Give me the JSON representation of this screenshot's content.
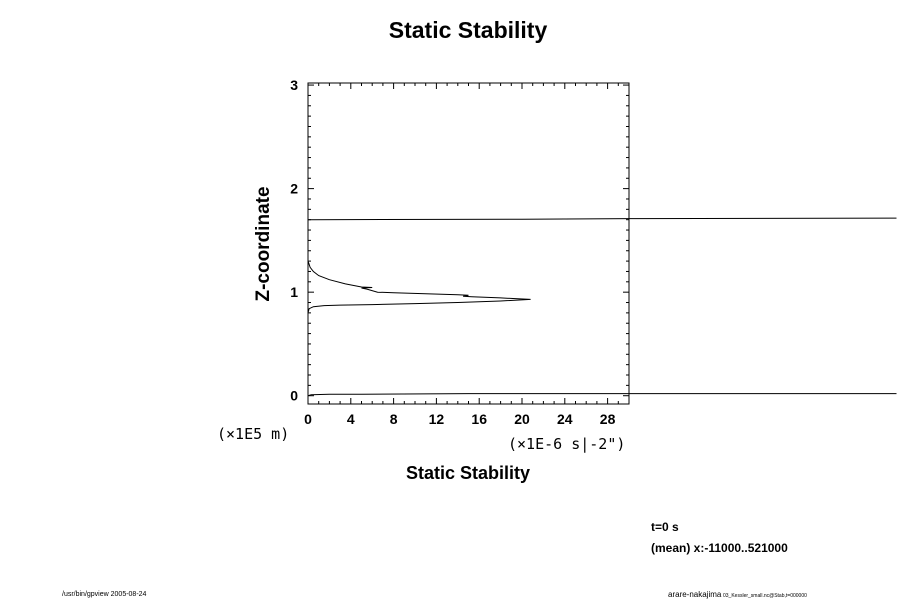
{
  "colors": {
    "background": "#ffffff",
    "ink": "#000000"
  },
  "chart_data": {
    "type": "line",
    "title": "Static Stability",
    "xlabel": "Static Stability",
    "ylabel": "Z-coordinate",
    "x_scale_label": "(×1E-6 s|-2\")",
    "y_scale_label": "(×1E5 m)",
    "xlim": [
      0,
      30
    ],
    "ylim": [
      -0.08,
      3.02
    ],
    "x_ticks": [
      0,
      4,
      8,
      12,
      16,
      20,
      24,
      28
    ],
    "y_ticks": [
      0,
      1,
      2,
      3
    ],
    "grid": false,
    "series": [
      {
        "points": [
          [
            0.0,
            0.0
          ],
          [
            0.3,
            0.01
          ],
          [
            2.0,
            0.015
          ],
          [
            5.0,
            0.015
          ],
          [
            15.0,
            0.02
          ],
          [
            30.0,
            0.02
          ],
          [
            55.0,
            0.02
          ],
          [
            null,
            null
          ],
          [
            0.0,
            0.8
          ],
          [
            0.1,
            0.84
          ],
          [
            0.5,
            0.86
          ],
          [
            1.5,
            0.87
          ],
          [
            3.0,
            0.875
          ],
          [
            6.0,
            0.88
          ],
          [
            10.0,
            0.89
          ],
          [
            14.0,
            0.9
          ],
          [
            18.0,
            0.915
          ],
          [
            20.8,
            0.93
          ],
          [
            18.0,
            0.945
          ],
          [
            15.3,
            0.955
          ],
          [
            14.5,
            0.96
          ],
          [
            15.0,
            0.97
          ],
          [
            14.0,
            0.975
          ],
          [
            11.0,
            0.985
          ],
          [
            8.0,
            0.995
          ],
          [
            6.5,
            1.0
          ],
          [
            5.5,
            1.03
          ],
          [
            5.0,
            1.04
          ],
          [
            6.0,
            1.045
          ],
          [
            5.0,
            1.05
          ],
          [
            3.5,
            1.08
          ],
          [
            2.0,
            1.12
          ],
          [
            1.0,
            1.16
          ],
          [
            0.5,
            1.2
          ],
          [
            0.2,
            1.24
          ],
          [
            0.1,
            1.27
          ],
          [
            0.0,
            1.3
          ],
          [
            null,
            null
          ],
          [
            0.0,
            1.7
          ],
          [
            20.0,
            1.705
          ],
          [
            30.0,
            1.71
          ],
          [
            55.0,
            1.715
          ]
        ]
      }
    ]
  },
  "annotations": {
    "time": "t=0 s",
    "mean": "(mean) x:-11000..521000",
    "footer_left": "/usr/bin/gpview 2005-08-24",
    "footer_right_main": "arare-nakajima",
    "footer_right_sub": "03_Kessler_small.nc@Stab,t=000000"
  }
}
